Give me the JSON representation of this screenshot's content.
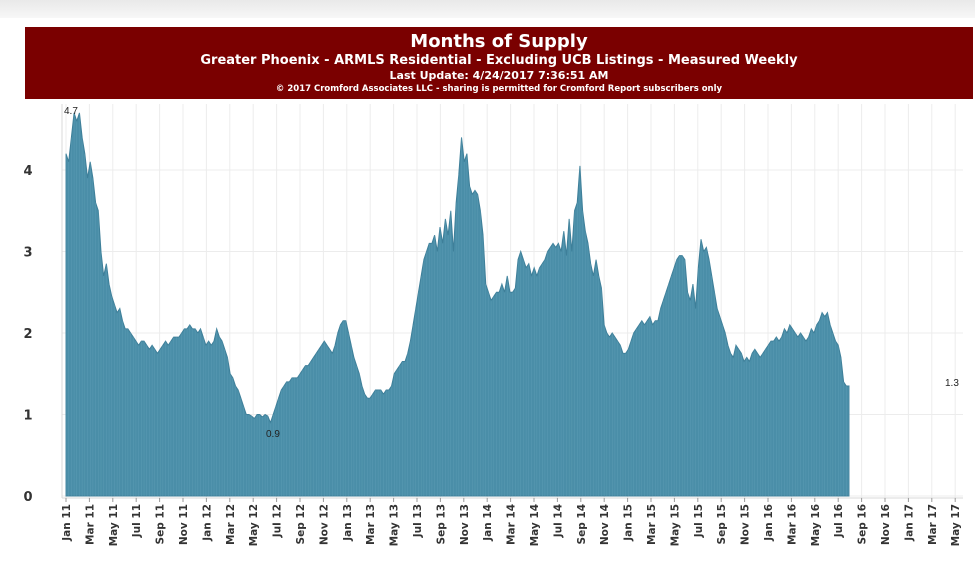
{
  "header": {
    "title": "Months of Supply",
    "subtitle": "Greater Phoenix - ARMLS Residential - Excluding UCB Listings - Measured Weekly",
    "last_update": "Last Update: 4/24/2017 7:36:51 AM",
    "copyright": "© 2017 Cromford Associates LLC - sharing is permitted for Cromford Report subscribers only"
  },
  "colors": {
    "header_bg": "#7a0000",
    "area_fill": "#4a8ea8",
    "area_stroke": "#3e7f99",
    "grid": "#ececec"
  },
  "chart_data": {
    "type": "area",
    "title": "Months of Supply",
    "subtitle": "Greater Phoenix - ARMLS Residential - Excluding UCB Listings - Measured Weekly",
    "xlabel": "",
    "ylabel": "",
    "ylim": [
      0,
      4.9
    ],
    "yticks": [
      "0",
      "1",
      "2",
      "3",
      "4"
    ],
    "xticks": [
      "Jan 11",
      "Mar 11",
      "May 11",
      "Jul 11",
      "Sep 11",
      "Nov 11",
      "Jan 12",
      "Mar 12",
      "May 12",
      "Jul 12",
      "Sep 12",
      "Nov 12",
      "Jan 13",
      "Mar 13",
      "May 13",
      "Jul 13",
      "Sep 13",
      "Nov 13",
      "Jan 14",
      "Mar 14",
      "May 14",
      "Jul 14",
      "Sep 14",
      "Nov 14",
      "Jan 15",
      "Mar 15",
      "May 15",
      "Jul 15",
      "Sep 15",
      "Nov 15",
      "Jan 16",
      "Mar 16",
      "May 16",
      "Jul 16",
      "Sep 16",
      "Nov 16",
      "Jan 17",
      "Mar 17",
      "May 17"
    ],
    "grid": true,
    "series": [
      {
        "x_start": "Jan 2011",
        "x_step": "week",
        "values": [
          4.2,
          4.1,
          4.4,
          4.7,
          4.6,
          4.7,
          4.4,
          4.2,
          3.9,
          4.1,
          3.9,
          3.6,
          3.5,
          3.0,
          2.7,
          2.85,
          2.6,
          2.45,
          2.35,
          2.25,
          2.3,
          2.15,
          2.05,
          2.05,
          2.0,
          1.95,
          1.9,
          1.85,
          1.9,
          1.9,
          1.85,
          1.8,
          1.85,
          1.8,
          1.75,
          1.8,
          1.85,
          1.9,
          1.85,
          1.9,
          1.95,
          1.95,
          1.95,
          2.0,
          2.05,
          2.05,
          2.1,
          2.05,
          2.05,
          2.0,
          2.05,
          1.95,
          1.85,
          1.9,
          1.85,
          1.9,
          2.05,
          1.95,
          1.9,
          1.8,
          1.7,
          1.5,
          1.45,
          1.35,
          1.3,
          1.2,
          1.1,
          1.0,
          1.0,
          0.98,
          0.95,
          1.0,
          1.0,
          0.97,
          1.0,
          0.98,
          0.9,
          1.0,
          1.1,
          1.2,
          1.3,
          1.35,
          1.4,
          1.4,
          1.45,
          1.45,
          1.45,
          1.5,
          1.55,
          1.6,
          1.6,
          1.65,
          1.7,
          1.75,
          1.8,
          1.85,
          1.9,
          1.85,
          1.8,
          1.75,
          1.85,
          2.0,
          2.1,
          2.15,
          2.15,
          2.0,
          1.85,
          1.7,
          1.6,
          1.5,
          1.35,
          1.25,
          1.2,
          1.2,
          1.25,
          1.3,
          1.3,
          1.3,
          1.25,
          1.3,
          1.3,
          1.35,
          1.5,
          1.55,
          1.6,
          1.65,
          1.65,
          1.75,
          1.9,
          2.1,
          2.3,
          2.5,
          2.7,
          2.9,
          3.0,
          3.1,
          3.1,
          3.2,
          3.0,
          3.3,
          3.1,
          3.4,
          3.2,
          3.5,
          3.0,
          3.6,
          3.95,
          4.4,
          4.1,
          4.2,
          3.8,
          3.7,
          3.75,
          3.7,
          3.5,
          3.2,
          2.6,
          2.5,
          2.4,
          2.45,
          2.5,
          2.5,
          2.6,
          2.5,
          2.7,
          2.5,
          2.5,
          2.55,
          2.9,
          3.0,
          2.9,
          2.8,
          2.85,
          2.7,
          2.8,
          2.7,
          2.8,
          2.85,
          2.9,
          3.0,
          3.05,
          3.1,
          3.05,
          3.1,
          3.0,
          3.25,
          2.95,
          3.4,
          3.0,
          3.5,
          3.6,
          4.05,
          3.5,
          3.25,
          3.1,
          2.85,
          2.7,
          2.9,
          2.7,
          2.55,
          2.1,
          2.0,
          1.95,
          2.0,
          1.95,
          1.9,
          1.85,
          1.75,
          1.75,
          1.8,
          1.9,
          2.0,
          2.05,
          2.1,
          2.15,
          2.1,
          2.15,
          2.2,
          2.1,
          2.15,
          2.15,
          2.3,
          2.4,
          2.5,
          2.6,
          2.7,
          2.8,
          2.9,
          2.95,
          2.95,
          2.9,
          2.5,
          2.4,
          2.6,
          2.3,
          2.8,
          3.15,
          3.0,
          3.05,
          2.9,
          2.7,
          2.5,
          2.3,
          2.2,
          2.1,
          2.0,
          1.85,
          1.75,
          1.7,
          1.85,
          1.8,
          1.75,
          1.65,
          1.7,
          1.65,
          1.75,
          1.8,
          1.75,
          1.7,
          1.75,
          1.8,
          1.85,
          1.9,
          1.9,
          1.95,
          1.9,
          1.95,
          2.05,
          2.0,
          2.1,
          2.05,
          2.0,
          1.95,
          2.0,
          1.95,
          1.9,
          1.95,
          2.05,
          2.0,
          2.1,
          2.15,
          2.25,
          2.2,
          2.25,
          2.1,
          2.0,
          1.9,
          1.85,
          1.7,
          1.4,
          1.35,
          1.35
        ]
      }
    ],
    "annotations": [
      {
        "text": "4.7",
        "x": "Jan 11",
        "y": 4.7
      },
      {
        "text": "0.9",
        "x": "Jun 12",
        "y": 0.9
      },
      {
        "text": "1.3",
        "x": "Apr 17",
        "y": 1.3
      }
    ]
  }
}
